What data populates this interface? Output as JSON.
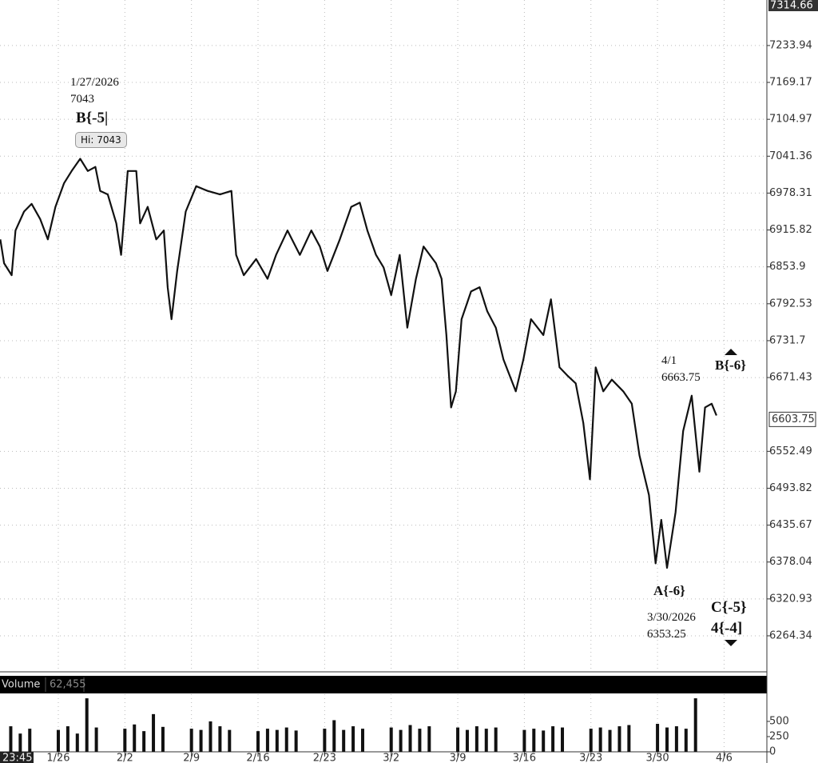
{
  "chart_data": [
    {
      "type": "line",
      "log_scale": true,
      "grid": true,
      "color": "#111111",
      "xlim": [
        -6.13,
        74.5
      ],
      "ylim": [
        6212,
        7314.66
      ],
      "xticks": [
        {
          "value": 0,
          "label": "1/26"
        },
        {
          "value": 7,
          "label": "2/2"
        },
        {
          "value": 14,
          "label": "2/9"
        },
        {
          "value": 21,
          "label": "2/16"
        },
        {
          "value": 28,
          "label": "2/23"
        },
        {
          "value": 35,
          "label": "3/2"
        },
        {
          "value": 42,
          "label": "3/9"
        },
        {
          "value": 49,
          "label": "3/16"
        },
        {
          "value": 56,
          "label": "3/23"
        },
        {
          "value": 63,
          "label": "3/30"
        },
        {
          "value": 70,
          "label": "4/6"
        }
      ],
      "yticks": [
        7233.94,
        7169.17,
        7104.97,
        7041.36,
        6978.31,
        6915.82,
        6853.9,
        6792.53,
        6731.7,
        6671.43,
        6552.49,
        6493.82,
        6435.67,
        6378.04,
        6320.93,
        6264.34
      ],
      "last_price": 6603.75,
      "time": "23:45",
      "x": [
        -6.1,
        -5.7,
        -4.9,
        -4.5,
        -3.6,
        -2.8,
        -1.9,
        -1.1,
        -0.3,
        0.6,
        1.4,
        2.3,
        3.1,
        3.9,
        4.4,
        5.2,
        6.1,
        6.6,
        7.3,
        8.2,
        8.6,
        9.4,
        10.3,
        11.1,
        11.5,
        11.9,
        12.5,
        13.4,
        14.5,
        15.7,
        17.0,
        18.2,
        18.7,
        19.5,
        20.8,
        22.0,
        22.9,
        24.1,
        25.4,
        26.6,
        27.5,
        28.3,
        29.6,
        30.8,
        31.7,
        32.5,
        33.4,
        34.2,
        35.0,
        35.9,
        36.7,
        37.6,
        38.4,
        39.7,
        40.3,
        40.8,
        41.3,
        41.8,
        42.4,
        43.4,
        44.3,
        45.1,
        46.0,
        46.8,
        48.1,
        48.9,
        49.7,
        51.0,
        51.8,
        52.7,
        53.5,
        54.4,
        55.2,
        55.9,
        56.5,
        57.3,
        58.2,
        59.4,
        60.3,
        61.1,
        62.1,
        62.8,
        63.4,
        64.0,
        64.9,
        65.7,
        66.6,
        67.4,
        68.0,
        68.7,
        69.2
      ],
      "values": [
        6900,
        6860,
        6840,
        6915,
        6947,
        6960,
        6934,
        6900,
        6955,
        6995,
        7016,
        7037,
        7016,
        7023,
        6982,
        6976,
        6927,
        6874,
        7016,
        7016,
        6927,
        6955,
        6900,
        6915,
        6820,
        6767,
        6847,
        6947,
        6990,
        6982,
        6976,
        6982,
        6874,
        6840,
        6867,
        6834,
        6874,
        6915,
        6874,
        6915,
        6888,
        6847,
        6900,
        6955,
        6962,
        6915,
        6874,
        6853,
        6807,
        6874,
        6753,
        6834,
        6888,
        6860,
        6834,
        6741,
        6623,
        6649,
        6767,
        6813,
        6820,
        6780,
        6753,
        6701,
        6649,
        6701,
        6767,
        6741,
        6800,
        6688,
        6675,
        6662,
        6598,
        6508,
        6688,
        6649,
        6668,
        6649,
        6629,
        6546,
        6483,
        6376,
        6444,
        6369,
        6456,
        6585,
        6642,
        6520,
        6623,
        6629,
        6610
      ],
      "annotations": [
        "1/27/2026",
        "7043",
        "B{-5|",
        "Hi: 7043",
        "4/1",
        "6663.75",
        "B{-6}",
        "A{-6}",
        "3/30/2026",
        "6353.25",
        "C{-5}",
        "4{-4]"
      ]
    },
    {
      "type": "bar",
      "title": "Volume",
      "subtitle": "62,455",
      "color": "#111111",
      "xlim": [
        -6.13,
        74.5
      ],
      "ylim": [
        0,
        947
      ],
      "yticks": [
        0,
        250,
        500
      ],
      "x": [
        -5,
        -4,
        -3,
        0,
        1,
        2,
        3,
        4,
        7,
        8,
        9,
        10,
        11,
        14,
        15,
        16,
        17,
        18,
        21,
        22,
        23,
        24,
        25,
        28,
        29,
        30,
        31,
        32,
        35,
        36,
        37,
        38,
        39,
        42,
        43,
        44,
        45,
        46,
        49,
        50,
        51,
        52,
        53,
        56,
        57,
        58,
        59,
        60,
        63,
        64,
        65,
        66,
        67
      ],
      "values": [
        420,
        300,
        380,
        360,
        420,
        300,
        880,
        400,
        380,
        450,
        340,
        620,
        410,
        380,
        360,
        500,
        420,
        360,
        340,
        380,
        360,
        400,
        350,
        380,
        520,
        360,
        420,
        380,
        400,
        360,
        440,
        380,
        420,
        400,
        360,
        420,
        380,
        400,
        360,
        380,
        350,
        420,
        400,
        380,
        400,
        360,
        420,
        440,
        460,
        400,
        420,
        380,
        880
      ]
    }
  ]
}
